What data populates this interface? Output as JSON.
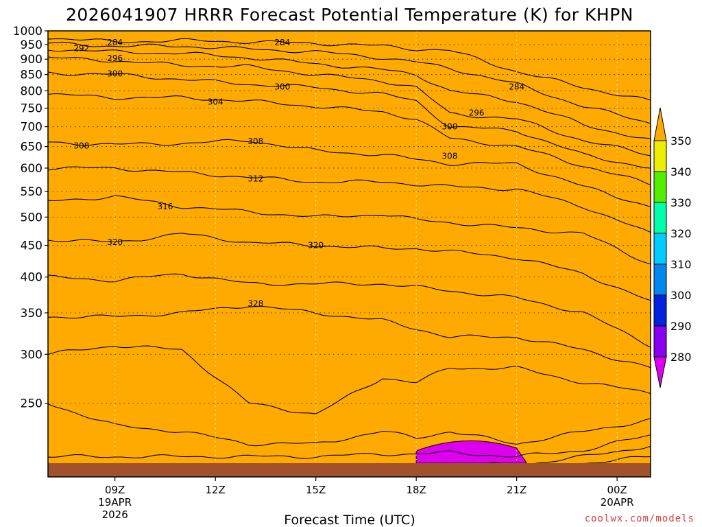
{
  "chart_data": {
    "type": "contour",
    "title": "2026041907 HRRR Forecast Potential Temperature (K) for KHPN",
    "xlabel": "Forecast Time (UTC)",
    "credit": "coolwx.com/models",
    "y_axis": {
      "unit": "hPa",
      "scale": "log-pressure",
      "range": [
        1000,
        200
      ],
      "ticks": [
        250,
        300,
        350,
        400,
        450,
        500,
        550,
        600,
        650,
        700,
        750,
        800,
        850,
        900,
        950,
        1000
      ]
    },
    "x_axis": {
      "ticks": [
        {
          "hour": 9,
          "label": "09Z",
          "sub": [
            "19APR",
            "2026"
          ]
        },
        {
          "hour": 12,
          "label": "12Z",
          "sub": []
        },
        {
          "hour": 15,
          "label": "15Z",
          "sub": []
        },
        {
          "hour": 18,
          "label": "18Z",
          "sub": []
        },
        {
          "hour": 21,
          "label": "21Z",
          "sub": []
        },
        {
          "hour": 24,
          "label": "00Z",
          "sub": [
            "20APR"
          ]
        }
      ],
      "range_hours": [
        7,
        25
      ]
    },
    "colorbar": {
      "levels": [
        280,
        290,
        300,
        310,
        320,
        330,
        340,
        350
      ],
      "colors": [
        "#dd00ee",
        "#8800ee",
        "#0022dd",
        "#0088ee",
        "#00ccff",
        "#00ffaa",
        "#55ee00",
        "#eeee00",
        "#ffaa00"
      ]
    },
    "shading": {
      "bands": [
        {
          "range": "<280",
          "color": "#dd00ee"
        },
        {
          "range": "280-290",
          "color": "#8800ee"
        },
        {
          "range": "290-300",
          "color": "#0022dd"
        },
        {
          "range": "300-310",
          "color": "#0088ee"
        },
        {
          "range": "310-320",
          "color": "#00ccff"
        },
        {
          "range": "320-330",
          "color": "#00ffaa"
        },
        {
          "range": "330-340",
          "color": "#55ee00"
        },
        {
          "range": "340-350",
          "color": "#eeee00"
        },
        {
          "range": ">350",
          "color": "#ffaa00"
        }
      ]
    },
    "contour_labels": [
      {
        "value": "328",
        "hour": 13.2,
        "p": 362
      },
      {
        "value": "320",
        "hour": 9.0,
        "p": 455
      },
      {
        "value": "320",
        "hour": 15.0,
        "p": 450
      },
      {
        "value": "316",
        "hour": 10.5,
        "p": 520
      },
      {
        "value": "312",
        "hour": 13.2,
        "p": 577
      },
      {
        "value": "308",
        "hour": 8.0,
        "p": 652
      },
      {
        "value": "308",
        "hour": 13.2,
        "p": 663
      },
      {
        "value": "308",
        "hour": 19.0,
        "p": 627
      },
      {
        "value": "304",
        "hour": 12.0,
        "p": 768
      },
      {
        "value": "300",
        "hour": 9.0,
        "p": 852
      },
      {
        "value": "300",
        "hour": 14.0,
        "p": 812
      },
      {
        "value": "300",
        "hour": 19.0,
        "p": 700
      },
      {
        "value": "296",
        "hour": 9.0,
        "p": 903
      },
      {
        "value": "296",
        "hour": 19.8,
        "p": 737
      },
      {
        "value": "292",
        "hour": 8.0,
        "p": 937
      },
      {
        "value": "284",
        "hour": 9.0,
        "p": 957
      },
      {
        "value": "284",
        "hour": 14.0,
        "p": 957
      },
      {
        "value": "284",
        "hour": 21.0,
        "p": 812
      }
    ],
    "isentropes_K": [
      284,
      288,
      292,
      296,
      300,
      304,
      308,
      312,
      316,
      320,
      324,
      328,
      332,
      336,
      340,
      344,
      348
    ]
  }
}
